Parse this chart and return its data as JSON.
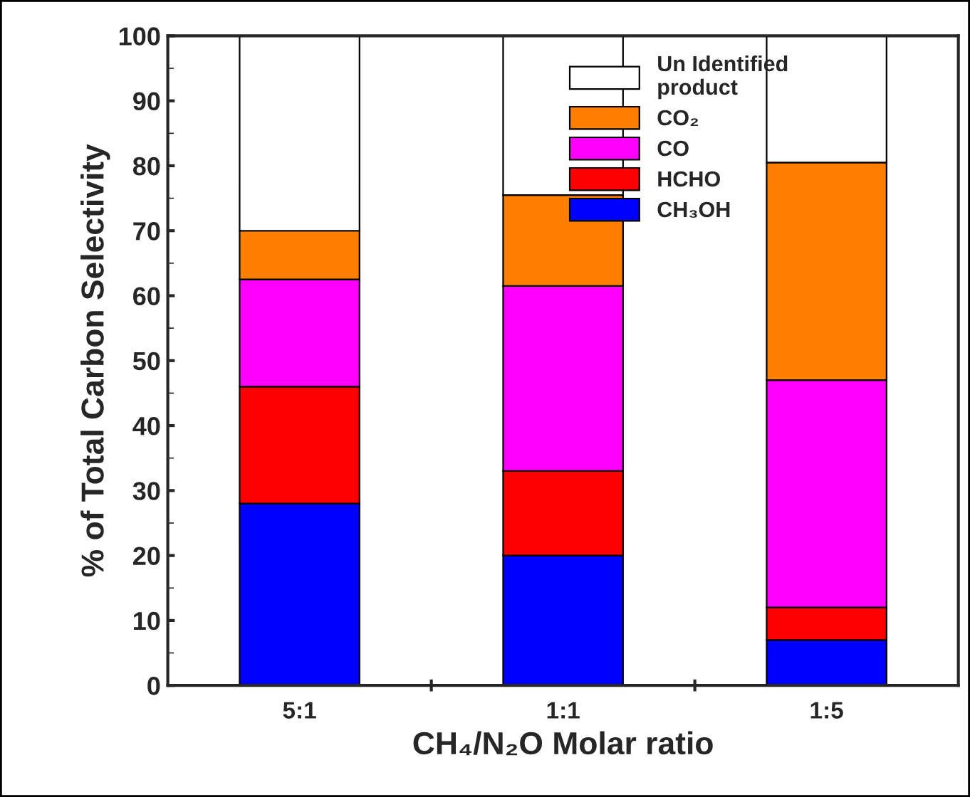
{
  "chart_data": {
    "type": "bar",
    "stacked": true,
    "xlabel": "CH₄/N₂O Molar ratio",
    "ylabel": "% of Total Carbon Selectivity",
    "categories": [
      "5:1",
      "1:1",
      "1:5"
    ],
    "series": [
      {
        "name": "CH₃OH",
        "color": "#0000ff",
        "values": [
          28,
          20,
          7
        ]
      },
      {
        "name": "HCHO",
        "color": "#ff0000",
        "values": [
          18,
          13,
          5
        ]
      },
      {
        "name": "CO",
        "color": "#ff00ff",
        "values": [
          16.5,
          28.5,
          35
        ]
      },
      {
        "name": "CO₂",
        "color": "#ff8000",
        "values": [
          7.5,
          14,
          33.5
        ]
      },
      {
        "name": "Un Identified\nproduct",
        "color": "#ffffff",
        "values": [
          30,
          24.5,
          19.5
        ]
      }
    ],
    "ylim": [
      0,
      100
    ],
    "yticks": [
      0,
      10,
      20,
      30,
      40,
      50,
      60,
      70,
      80,
      90,
      100
    ],
    "grid": false,
    "legend": "top right"
  }
}
